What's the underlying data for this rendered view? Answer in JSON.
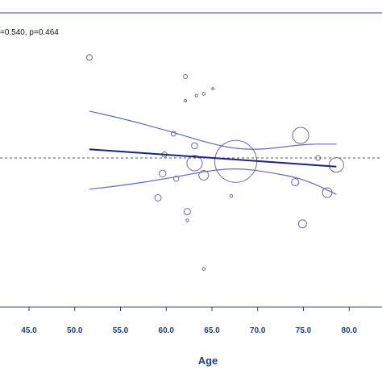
{
  "chart_data": {
    "type": "scatter",
    "title": "",
    "annotation": "=0.540, p=0.464",
    "xlabel": "Age",
    "ylabel": "",
    "xlim": [
      41.5,
      83.5
    ],
    "ylim": [
      -1.0,
      1.0
    ],
    "x_ticks": [
      "45.0",
      "50.0",
      "55.0",
      "60.0",
      "65.0",
      "70.0",
      "75.0",
      "80.0"
    ],
    "reference_line": {
      "y": 0,
      "style": "dashed"
    },
    "colors": {
      "points": "#6a6aa8",
      "fit": "#1a237e",
      "ci": "#5c6bc0",
      "axis": "#1f3f7f"
    },
    "points": [
      {
        "x": 51.6,
        "y": 0.58,
        "size": 3.5
      },
      {
        "x": 62.1,
        "y": 0.47,
        "size": 2.5
      },
      {
        "x": 62.1,
        "y": 0.33,
        "size": 1.5
      },
      {
        "x": 63.3,
        "y": 0.36,
        "size": 1.6
      },
      {
        "x": 64.1,
        "y": 0.37,
        "size": 1.8
      },
      {
        "x": 65.1,
        "y": 0.4,
        "size": 1.4
      },
      {
        "x": 60.8,
        "y": 0.14,
        "size": 3.0
      },
      {
        "x": 63.1,
        "y": 0.07,
        "size": 3.8
      },
      {
        "x": 59.8,
        "y": 0.02,
        "size": 3.2
      },
      {
        "x": 63.1,
        "y": -0.03,
        "size": 9.5
      },
      {
        "x": 67.6,
        "y": -0.02,
        "size": 26
      },
      {
        "x": 74.7,
        "y": 0.13,
        "size": 10
      },
      {
        "x": 76.6,
        "y": 0.0,
        "size": 3.0
      },
      {
        "x": 78.6,
        "y": -0.04,
        "size": 9.0
      },
      {
        "x": 59.6,
        "y": -0.09,
        "size": 4.2
      },
      {
        "x": 64.1,
        "y": -0.1,
        "size": 6.0
      },
      {
        "x": 61.1,
        "y": -0.12,
        "size": 3.2
      },
      {
        "x": 74.1,
        "y": -0.14,
        "size": 4.5
      },
      {
        "x": 77.6,
        "y": -0.2,
        "size": 6.0
      },
      {
        "x": 59.1,
        "y": -0.23,
        "size": 4.0
      },
      {
        "x": 67.1,
        "y": -0.22,
        "size": 1.8
      },
      {
        "x": 62.3,
        "y": -0.31,
        "size": 4.0
      },
      {
        "x": 62.3,
        "y": -0.36,
        "size": 1.6
      },
      {
        "x": 74.9,
        "y": -0.38,
        "size": 5.0
      },
      {
        "x": 64.1,
        "y": -0.64,
        "size": 1.8
      }
    ],
    "fit_line": {
      "x": [
        51.6,
        78.6
      ],
      "y": [
        0.05,
        -0.05
      ]
    },
    "ci_upper": {
      "x": [
        51.6,
        55.0,
        60.0,
        65.0,
        68.0,
        71.0,
        75.0,
        78.6
      ],
      "y": [
        0.27,
        0.23,
        0.16,
        0.08,
        0.05,
        0.05,
        0.08,
        0.08
      ]
    },
    "ci_lower": {
      "x": [
        51.6,
        55.0,
        60.0,
        65.0,
        68.0,
        71.0,
        75.0,
        78.6
      ],
      "y": [
        -0.18,
        -0.16,
        -0.12,
        -0.07,
        -0.06,
        -0.08,
        -0.12,
        -0.21
      ]
    }
  }
}
